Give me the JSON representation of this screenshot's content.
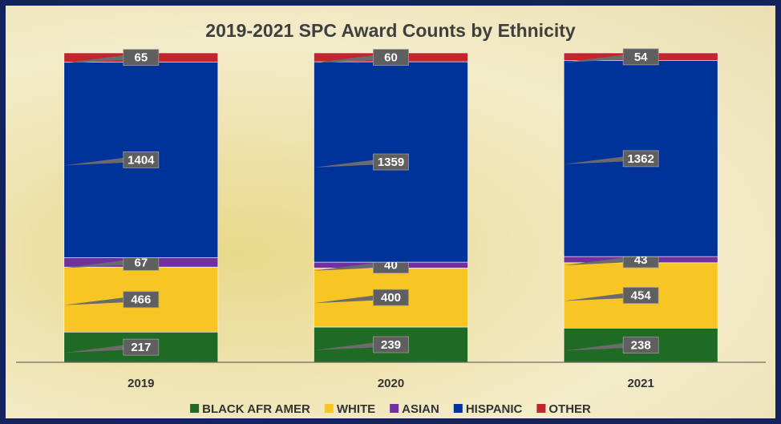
{
  "chart_data": {
    "type": "bar",
    "stacked": "percent",
    "title": "2019-2021 SPC Award Counts by Ethnicity",
    "categories": [
      "2019",
      "2020",
      "2021"
    ],
    "series": [
      {
        "name": "BLACK AFR AMER",
        "color": "#1f6b25",
        "values": [
          217,
          239,
          238
        ]
      },
      {
        "name": "WHITE",
        "color": "#f7c625",
        "values": [
          466,
          400,
          454
        ]
      },
      {
        "name": "ASIAN",
        "color": "#7030a0",
        "values": [
          67,
          40,
          43
        ]
      },
      {
        "name": "HISPANIC",
        "color": "#00339a",
        "values": [
          1404,
          1359,
          1362
        ]
      },
      {
        "name": "OTHER",
        "color": "#c0272d",
        "values": [
          65,
          60,
          54
        ]
      }
    ],
    "legend": "bottom"
  }
}
